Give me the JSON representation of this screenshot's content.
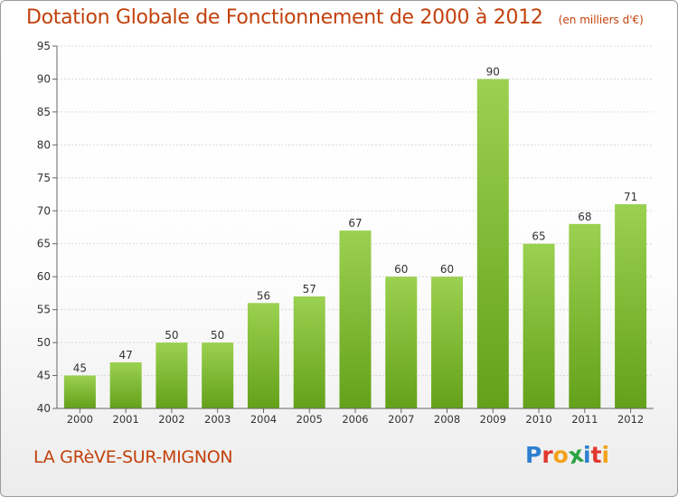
{
  "header": {
    "title": "Dotation Globale de Fonctionnement de 2000 à 2012",
    "subtitle": "(en milliers d'€)"
  },
  "footer": {
    "commune": "LA GRèVE-SUR-MIGNON",
    "brand_letters": [
      "P",
      "r",
      "o",
      "x",
      "i",
      "t",
      "i"
    ],
    "brand_colors": [
      "#2c7fd1",
      "#e2372e",
      "#f3a21b",
      "#2aa343",
      "#2c7fd1",
      "#e2372e",
      "#f3a21b"
    ]
  },
  "colors": {
    "bar_top": "#9bd150",
    "bar_bottom": "#64a11a",
    "grid": "#d9d9d9",
    "axis": "#666666",
    "text": "#333333",
    "accent": "#c2410c"
  },
  "chart_data": {
    "type": "bar",
    "title": "Dotation Globale de Fonctionnement de 2000 à 2012",
    "subtitle": "(en milliers d'€)",
    "xlabel": "",
    "ylabel": "",
    "categories": [
      "2000",
      "2001",
      "2002",
      "2003",
      "2004",
      "2005",
      "2006",
      "2007",
      "2008",
      "2009",
      "2010",
      "2011",
      "2012"
    ],
    "values": [
      45,
      47,
      50,
      50,
      56,
      57,
      67,
      60,
      60,
      90,
      65,
      68,
      71
    ],
    "ylim": [
      40,
      95
    ],
    "yticks": [
      40,
      45,
      50,
      55,
      60,
      65,
      70,
      75,
      80,
      85,
      90,
      95
    ],
    "grid": true,
    "legend": "none",
    "data_labels": true
  }
}
